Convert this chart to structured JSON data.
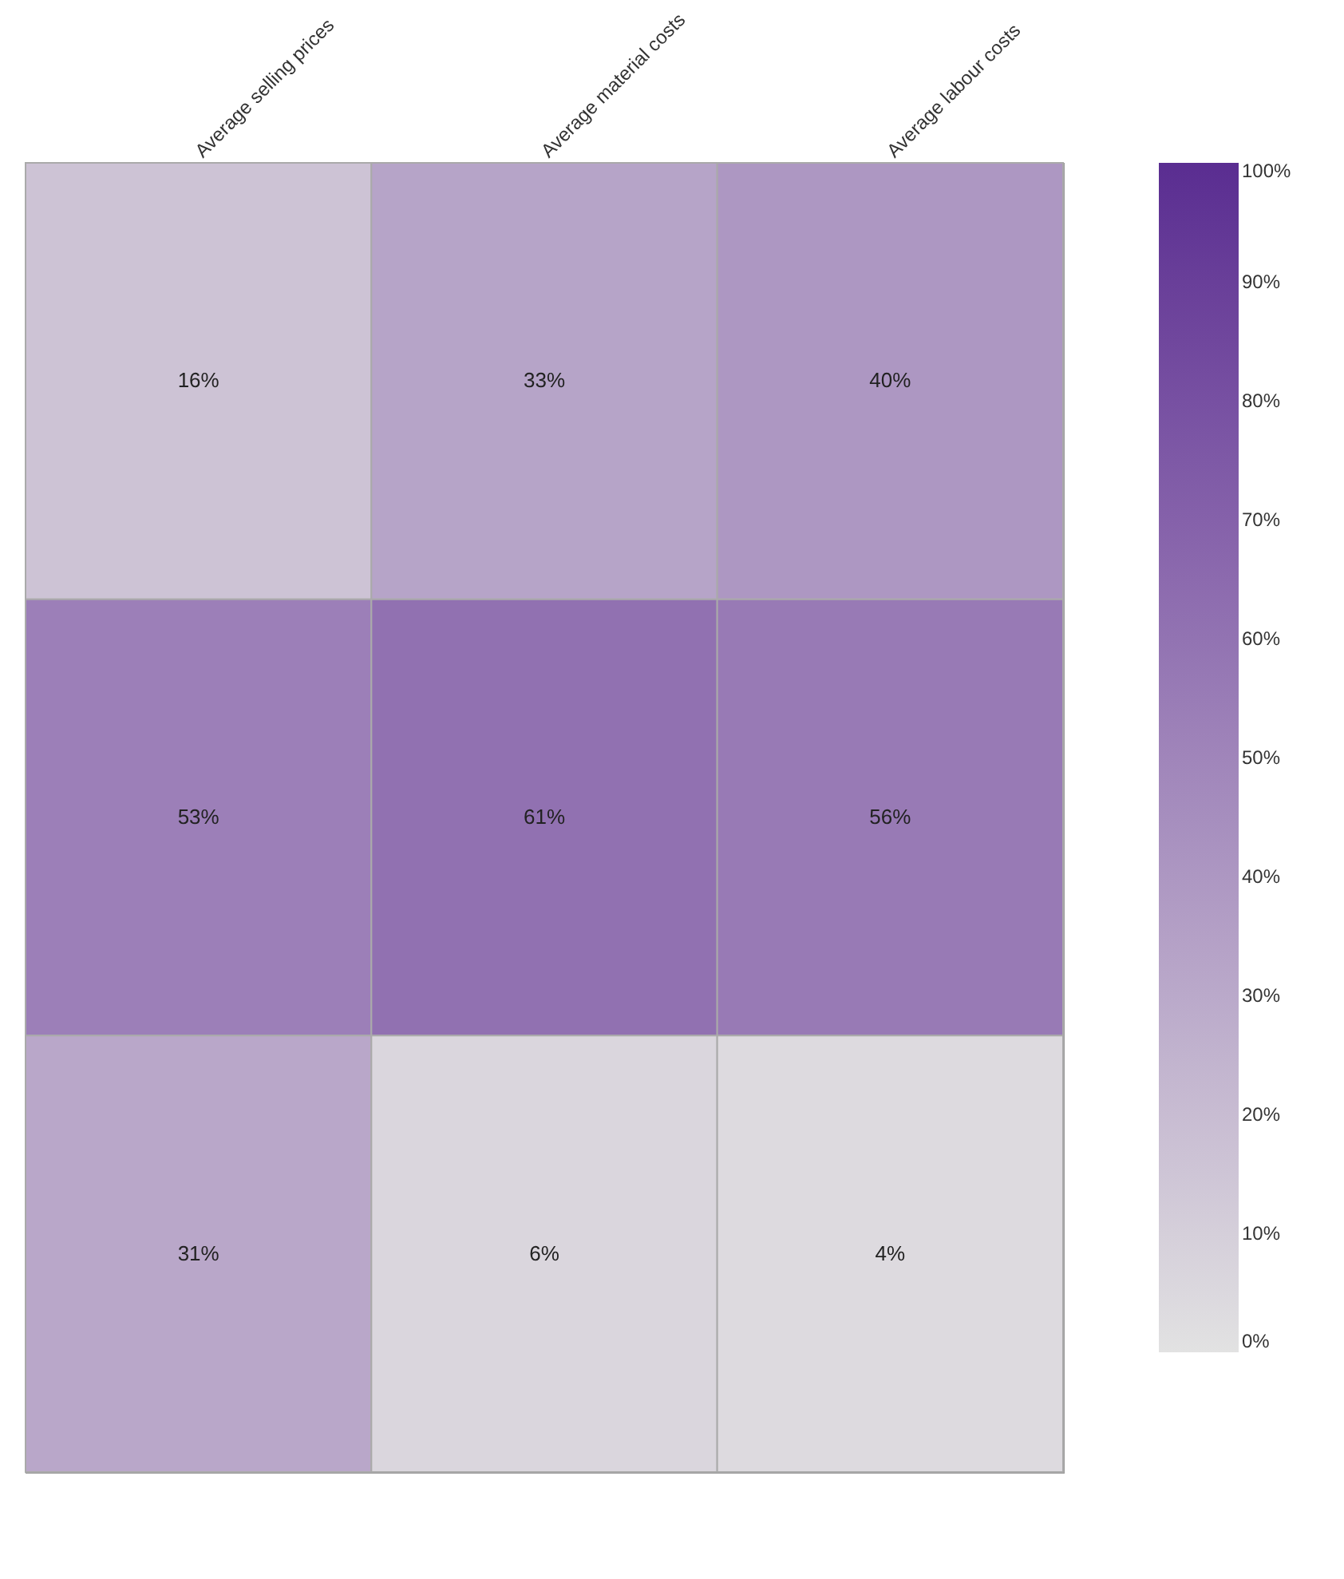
{
  "chart_data": {
    "type": "heatmap",
    "categories": [
      "Average selling prices",
      "Average material costs",
      "Average labour costs"
    ],
    "y_categories": [
      null,
      null,
      null
    ],
    "cells": [
      [
        16,
        33,
        40
      ],
      [
        53,
        61,
        56
      ],
      [
        31,
        6,
        4
      ]
    ],
    "cell_labels": [
      [
        "16%",
        "33%",
        "40%"
      ],
      [
        "53%",
        "61%",
        "56%"
      ],
      [
        "31%",
        "6%",
        "4%"
      ]
    ],
    "clim": [
      0,
      100
    ],
    "cticks": [
      {
        "value": 0,
        "label": "0%"
      },
      {
        "value": 10,
        "label": "10%"
      },
      {
        "value": 20,
        "label": "20%"
      },
      {
        "value": 30,
        "label": "30%"
      },
      {
        "value": 40,
        "label": "40%"
      },
      {
        "value": 50,
        "label": "50%"
      },
      {
        "value": 60,
        "label": "60%"
      },
      {
        "value": 70,
        "label": "70%"
      },
      {
        "value": 80,
        "label": "80%"
      },
      {
        "value": 90,
        "label": "90%"
      },
      {
        "value": 100,
        "label": "100%"
      }
    ],
    "colors": [
      "#e2e2e2",
      "#5a2d91"
    ]
  }
}
